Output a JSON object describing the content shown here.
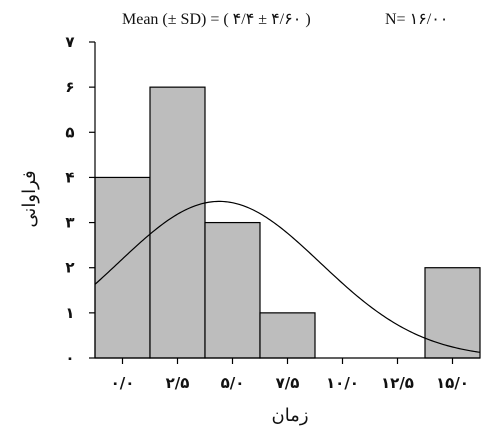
{
  "title": {
    "mean_text": "Mean (± SD) = (  ۴/۴  ±  ۴/۶۰  )",
    "n_text": "N= ۱۶/۰۰"
  },
  "chart_data": {
    "type": "bar",
    "title": "Mean (± SD) = ( ۴/۴ ± ۴/۶۰ )  N= ۱۶/۰۰",
    "xlabel": "زمان",
    "ylabel": "فراوانی",
    "bin_width": 2.5,
    "x_tick_values": [
      0,
      2.5,
      5,
      7.5,
      10,
      12.5,
      15
    ],
    "x_tick_labels": [
      "۰/۰",
      "۲/۵",
      "۵/۰",
      "۷/۵",
      "۱۰/۰",
      "۱۲/۵",
      "۱۵/۰"
    ],
    "y_tick_values": [
      0,
      1,
      2,
      3,
      4,
      5,
      6,
      7
    ],
    "y_tick_labels": [
      "۰",
      "۱",
      "۲",
      "۳",
      "۴",
      "۵",
      "۶",
      "۷"
    ],
    "xlim": [
      -1.25,
      16.25
    ],
    "ylim": [
      0,
      7
    ],
    "bins": [
      {
        "center": 0,
        "count": 4
      },
      {
        "center": 2.5,
        "count": 6
      },
      {
        "center": 5,
        "count": 3
      },
      {
        "center": 7.5,
        "count": 1
      },
      {
        "center": 10,
        "count": 0
      },
      {
        "center": 12.5,
        "count": 0
      },
      {
        "center": 15,
        "count": 2
      }
    ],
    "normal_curve": {
      "mean": 4.4,
      "sd": 4.6,
      "n": 16
    }
  },
  "colors": {
    "bar_fill": "#bdbdbd",
    "line": "#000000"
  }
}
